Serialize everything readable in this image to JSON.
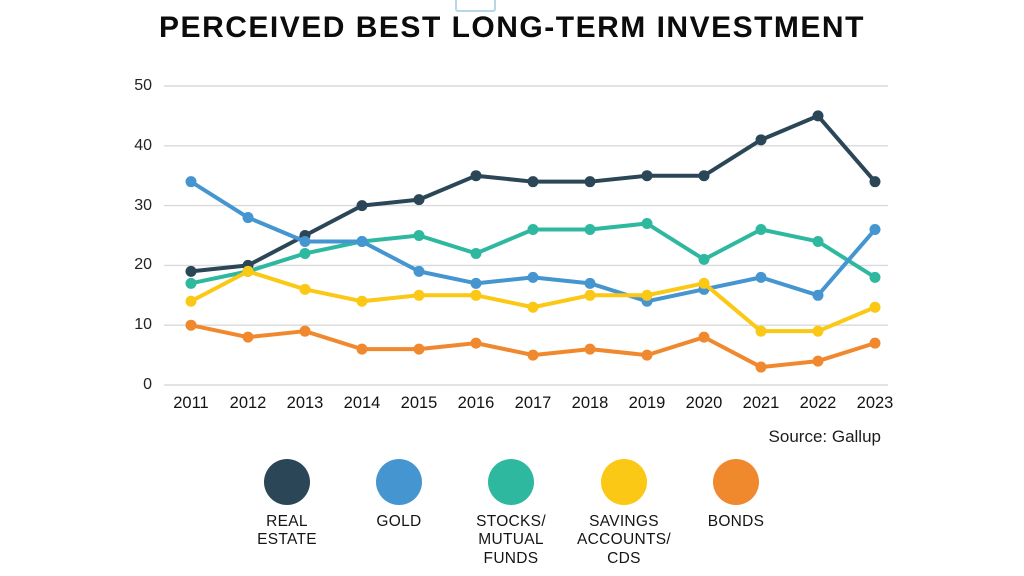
{
  "page": {
    "title": "PERCEIVED BEST LONG-TERM INVESTMENT",
    "source": "Source: Gallup"
  },
  "decorations": {
    "edge_snippet_border": "#b7d6e6",
    "grid_color": "#dadada",
    "background": "#ffffff"
  },
  "chart_data": {
    "type": "line",
    "title": "PERCEIVED BEST LONG-TERM INVESTMENT",
    "source": "Source: Gallup",
    "xlabel": "",
    "ylabel": "",
    "categories": [
      "2011",
      "2012",
      "2013",
      "2014",
      "2015",
      "2016",
      "2017",
      "2018",
      "2019",
      "2020",
      "2021",
      "2022",
      "2023"
    ],
    "ylim": [
      0,
      50
    ],
    "yticks": [
      0,
      10,
      20,
      30,
      40,
      50
    ],
    "grid": "horizontal",
    "legend_position": "bottom",
    "series": [
      {
        "name": "REAL\nESTATE",
        "key": "real-estate",
        "color": "#2b4657",
        "values": [
          19,
          20,
          25,
          30,
          31,
          35,
          34,
          34,
          35,
          35,
          41,
          45,
          34
        ]
      },
      {
        "name": "GOLD",
        "key": "gold",
        "color": "#4495d0",
        "values": [
          34,
          28,
          24,
          24,
          19,
          17,
          18,
          17,
          14,
          16,
          18,
          15,
          26
        ]
      },
      {
        "name": "STOCKS/\nMUTUAL\nFUNDS",
        "key": "stocks-mutual-funds",
        "color": "#2fb8a0",
        "values": [
          17,
          19,
          22,
          24,
          25,
          22,
          26,
          26,
          27,
          21,
          26,
          24,
          18
        ]
      },
      {
        "name": "SAVINGS\nACCOUNTS/\nCDS",
        "key": "savings-accounts-cds",
        "color": "#fac815",
        "values": [
          14,
          19,
          16,
          14,
          15,
          15,
          13,
          15,
          15,
          17,
          9,
          9,
          13
        ]
      },
      {
        "name": "BONDS",
        "key": "bonds",
        "color": "#f0882e",
        "values": [
          10,
          8,
          9,
          6,
          6,
          7,
          5,
          6,
          5,
          8,
          3,
          4,
          7
        ]
      }
    ]
  }
}
